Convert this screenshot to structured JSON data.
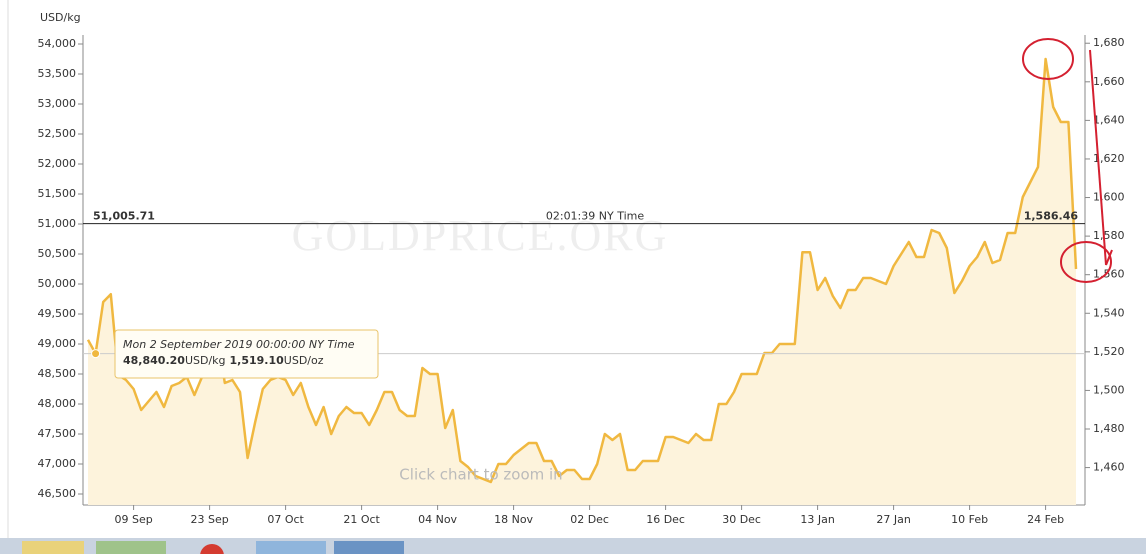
{
  "chart_data": {
    "type": "area",
    "y_axis_label": "USD/kg",
    "watermark": "GOLDPRICE.ORG",
    "zoom_hint": "Click chart to zoom in",
    "current_line": {
      "value": 51005.71,
      "label": "51,005.71",
      "time": "02:01:39 NY Time",
      "oz": {
        "value": 1586.46,
        "label": "1,586.46"
      }
    },
    "tooltip": {
      "date": "Mon 2 September 2019 00:00:00 NY Time",
      "kg": {
        "value": 48840.2,
        "label": "48,840.20"
      },
      "kg_unit": "USD/kg",
      "oz": {
        "value": 1519.1,
        "label": "1,519.10"
      },
      "oz_unit": "USD/oz"
    },
    "categories": [
      null,
      null,
      null,
      null,
      null,
      null,
      "09 Sep",
      null,
      null,
      null,
      null,
      null,
      null,
      null,
      null,
      null,
      "23 Sep",
      null,
      null,
      null,
      null,
      null,
      null,
      null,
      null,
      null,
      "07 Oct",
      null,
      null,
      null,
      null,
      null,
      null,
      null,
      null,
      null,
      "21 Oct",
      null,
      null,
      null,
      null,
      null,
      null,
      null,
      null,
      null,
      "04 Nov",
      null,
      null,
      null,
      null,
      null,
      null,
      null,
      null,
      null,
      "18 Nov",
      null,
      null,
      null,
      null,
      null,
      null,
      null,
      null,
      null,
      "02 Dec",
      null,
      null,
      null,
      null,
      null,
      null,
      null,
      null,
      null,
      "16 Dec",
      null,
      null,
      null,
      null,
      null,
      null,
      null,
      null,
      null,
      "30 Dec",
      null,
      null,
      null,
      null,
      null,
      null,
      null,
      null,
      null,
      "13 Jan",
      null,
      null,
      null,
      null,
      null,
      null,
      null,
      null,
      null,
      "27 Jan",
      null,
      null,
      null,
      null,
      null,
      null,
      null,
      null,
      null,
      "10 Feb",
      null,
      null,
      null,
      null,
      null,
      null,
      null,
      null,
      null,
      "24 Feb",
      null,
      null,
      null,
      null
    ],
    "series": [
      {
        "color": "#f0b840",
        "fill": "#fdf3dc",
        "values": [
          49070,
          48840,
          49700,
          49830,
          48480,
          48400,
          48250,
          47900,
          48050,
          48200,
          47950,
          48300,
          48350,
          48450,
          48150,
          48450,
          48700,
          49200,
          48350,
          48400,
          48200,
          47100,
          47700,
          48250,
          48400,
          48450,
          48400,
          48150,
          48350,
          47950,
          47650,
          47950,
          47500,
          47800,
          47950,
          47850,
          47850,
          47650,
          47900,
          48200,
          48200,
          47900,
          47800,
          47800,
          48600,
          48500,
          48500,
          47600,
          47900,
          47050,
          46950,
          46800,
          46750,
          46700,
          47000,
          47000,
          47150,
          47250,
          47350,
          47350,
          47050,
          47050,
          46800,
          46900,
          46900,
          46750,
          46750,
          47000,
          47500,
          47400,
          47500,
          46900,
          46900,
          47050,
          47050,
          47050,
          47450,
          47450,
          47400,
          47350,
          47500,
          47400,
          47400,
          48000,
          48000,
          48200,
          48500,
          48500,
          48500,
          48850,
          48850,
          49000,
          49000,
          49000,
          50530,
          50530,
          49900,
          50100,
          49800,
          49600,
          49900,
          49900,
          50100,
          50100,
          50050,
          50000,
          50300,
          50500,
          50700,
          50450,
          50450,
          50900,
          50850,
          50600,
          49850,
          50050,
          50300,
          50450,
          50700,
          50350,
          50400,
          50850,
          50850,
          51450,
          51700,
          51950,
          53750,
          52950,
          52700,
          52700,
          50250
        ]
      }
    ],
    "ylim": [
      46500,
      54000
    ],
    "yticks": [
      {
        "value": 46500,
        "label": "46,500"
      },
      {
        "value": 47000,
        "label": "47,000"
      },
      {
        "value": 47500,
        "label": "47,500"
      },
      {
        "value": 48000,
        "label": "48,000"
      },
      {
        "value": 48500,
        "label": "48,500"
      },
      {
        "value": 49000,
        "label": "49,000"
      },
      {
        "value": 49500,
        "label": "49,500"
      },
      {
        "value": 50000,
        "label": "50,000"
      },
      {
        "value": 50500,
        "label": "50,500"
      },
      {
        "value": 51000,
        "label": "51,000"
      },
      {
        "value": 51500,
        "label": "51,500"
      },
      {
        "value": 52000,
        "label": "52,000"
      },
      {
        "value": 52500,
        "label": "52,500"
      },
      {
        "value": 53000,
        "label": "53,000"
      },
      {
        "value": 53500,
        "label": "53,500"
      },
      {
        "value": 54000,
        "label": "54,000"
      }
    ],
    "y2lim": [
      1446.3,
      1679.6
    ],
    "y2ticks": [
      {
        "value": 1460,
        "label": "1,460"
      },
      {
        "value": 1480,
        "label": "1,480"
      },
      {
        "value": 1500,
        "label": "1,500"
      },
      {
        "value": 1520,
        "label": "1,520"
      },
      {
        "value": 1540,
        "label": "1,540"
      },
      {
        "value": 1560,
        "label": "1,560"
      },
      {
        "value": 1580,
        "label": "1,580"
      },
      {
        "value": 1600,
        "label": "1,600"
      },
      {
        "value": 1620,
        "label": "1,620"
      },
      {
        "value": 1640,
        "label": "1,640"
      },
      {
        "value": 1660,
        "label": "1,660"
      },
      {
        "value": 1680,
        "label": "1,680"
      }
    ]
  }
}
